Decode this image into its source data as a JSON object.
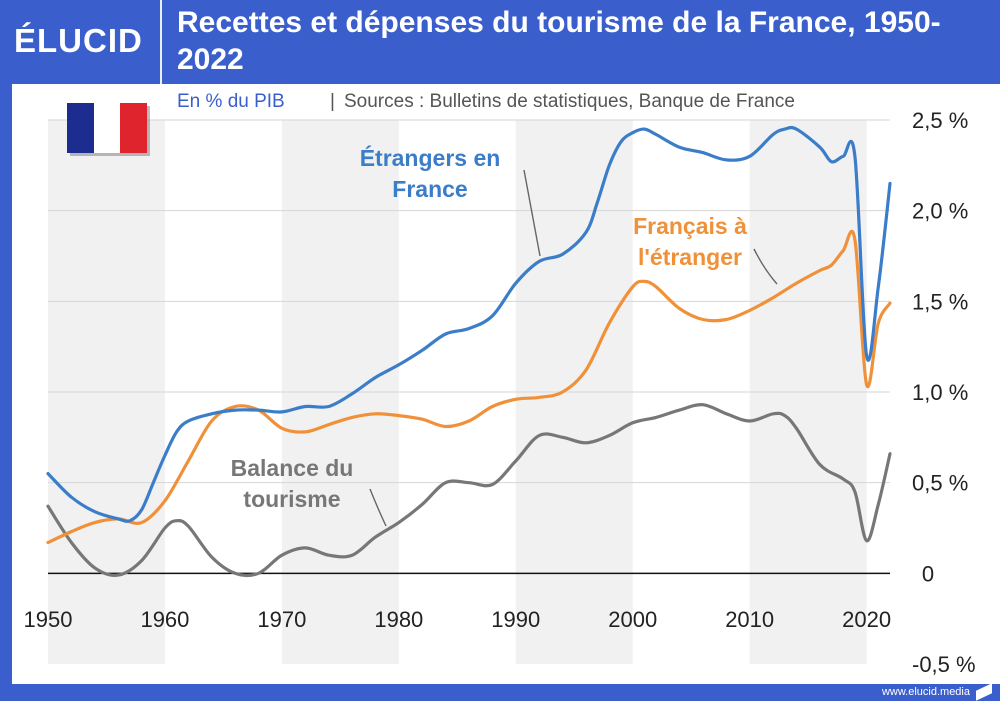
{
  "header": {
    "logo_text": "ÉLUCID",
    "title": "Recettes et dépenses du tourisme de la France, 1950-2022"
  },
  "subtitle": {
    "unit": "En % du PIB",
    "separator": "|",
    "sources": "Sources : Bulletins de statistiques, Banque de France"
  },
  "footer": {
    "url": "www.elucid.media"
  },
  "flag": {
    "icon": "france-flag-icon",
    "colors": [
      "#1d2c8f",
      "#ffffff",
      "#e0242e"
    ]
  },
  "colors": {
    "brand": "#3a5fcd",
    "etrangers": "#3b7dc9",
    "francais": "#f0913a",
    "balance": "#777777",
    "negative_tick": "#d62020"
  },
  "chart_data": {
    "type": "line",
    "title": "Recettes et dépenses du tourisme de la France, 1950-2022",
    "subtitle": "En % du PIB | Sources : Bulletins de statistiques, Banque de France",
    "xlabel": "",
    "ylabel": "",
    "xlim": [
      1950,
      2022
    ],
    "ylim": [
      -0.5,
      2.5
    ],
    "x_ticks": [
      1950,
      1960,
      1970,
      1980,
      1990,
      2000,
      2010,
      2020
    ],
    "x_tick_labels": [
      "1950",
      "1960",
      "1970",
      "1980",
      "1990",
      "2000",
      "2010",
      "2020"
    ],
    "y_ticks": [
      -0.5,
      0,
      0.5,
      1.0,
      1.5,
      2.0,
      2.5
    ],
    "y_tick_labels": [
      "-0,5 %",
      "0",
      "0,5 %",
      "1,0 %",
      "1,5 %",
      "2,0 %",
      "2,5 %"
    ],
    "grid": true,
    "legend": "inline labels",
    "series": [
      {
        "name": "Étrangers en France",
        "label_lines": [
          "Étrangers en",
          "France"
        ],
        "x": [
          1950,
          1952,
          1954,
          1956,
          1957,
          1958,
          1959,
          1960,
          1961,
          1962,
          1964,
          1966,
          1968,
          1970,
          1972,
          1974,
          1976,
          1978,
          1980,
          1982,
          1984,
          1986,
          1988,
          1990,
          1992,
          1994,
          1996,
          1997,
          1998,
          1999,
          2000,
          2001,
          2002,
          2004,
          2006,
          2008,
          2010,
          2012,
          2013,
          2014,
          2016,
          2017,
          2018,
          2019,
          2020,
          2021,
          2022
        ],
        "y": [
          0.55,
          0.42,
          0.34,
          0.3,
          0.29,
          0.35,
          0.5,
          0.65,
          0.78,
          0.84,
          0.88,
          0.9,
          0.9,
          0.89,
          0.92,
          0.92,
          0.99,
          1.08,
          1.15,
          1.23,
          1.32,
          1.35,
          1.42,
          1.6,
          1.72,
          1.76,
          1.88,
          2.05,
          2.25,
          2.38,
          2.43,
          2.45,
          2.42,
          2.35,
          2.32,
          2.28,
          2.3,
          2.42,
          2.45,
          2.45,
          2.35,
          2.27,
          2.3,
          2.3,
          1.2,
          1.58,
          2.15
        ]
      },
      {
        "name": "Français à l'étranger",
        "label_lines": [
          "Français à",
          "l'étranger"
        ],
        "x": [
          1950,
          1952,
          1954,
          1956,
          1958,
          1960,
          1962,
          1964,
          1966,
          1968,
          1970,
          1972,
          1974,
          1976,
          1978,
          1980,
          1982,
          1984,
          1986,
          1988,
          1990,
          1992,
          1994,
          1996,
          1998,
          2000,
          2001,
          2002,
          2004,
          2006,
          2008,
          2010,
          2012,
          2014,
          2016,
          2017,
          2018,
          2019,
          2020,
          2021,
          2022
        ],
        "y": [
          0.17,
          0.23,
          0.28,
          0.3,
          0.28,
          0.4,
          0.62,
          0.84,
          0.92,
          0.9,
          0.8,
          0.78,
          0.82,
          0.86,
          0.88,
          0.87,
          0.85,
          0.81,
          0.84,
          0.92,
          0.96,
          0.97,
          1.0,
          1.12,
          1.38,
          1.58,
          1.61,
          1.58,
          1.46,
          1.4,
          1.4,
          1.45,
          1.52,
          1.6,
          1.67,
          1.7,
          1.78,
          1.84,
          1.04,
          1.38,
          1.49
        ]
      },
      {
        "name": "Balance du tourisme",
        "label_lines": [
          "Balance du",
          "tourisme"
        ],
        "x": [
          1950,
          1952,
          1954,
          1956,
          1958,
          1960,
          1961,
          1962,
          1964,
          1966,
          1968,
          1970,
          1972,
          1974,
          1976,
          1978,
          1980,
          1982,
          1984,
          1986,
          1988,
          1990,
          1992,
          1994,
          1996,
          1998,
          2000,
          2002,
          2004,
          2006,
          2008,
          2010,
          2012,
          2013,
          2014,
          2016,
          2018,
          2019,
          2020,
          2021,
          2022
        ],
        "y": [
          0.37,
          0.17,
          0.03,
          -0.01,
          0.07,
          0.25,
          0.29,
          0.26,
          0.09,
          0.0,
          0.0,
          0.1,
          0.14,
          0.1,
          0.1,
          0.2,
          0.28,
          0.38,
          0.5,
          0.5,
          0.49,
          0.62,
          0.76,
          0.75,
          0.72,
          0.76,
          0.83,
          0.86,
          0.9,
          0.93,
          0.88,
          0.84,
          0.88,
          0.87,
          0.8,
          0.6,
          0.52,
          0.45,
          0.18,
          0.38,
          0.66
        ]
      }
    ]
  }
}
